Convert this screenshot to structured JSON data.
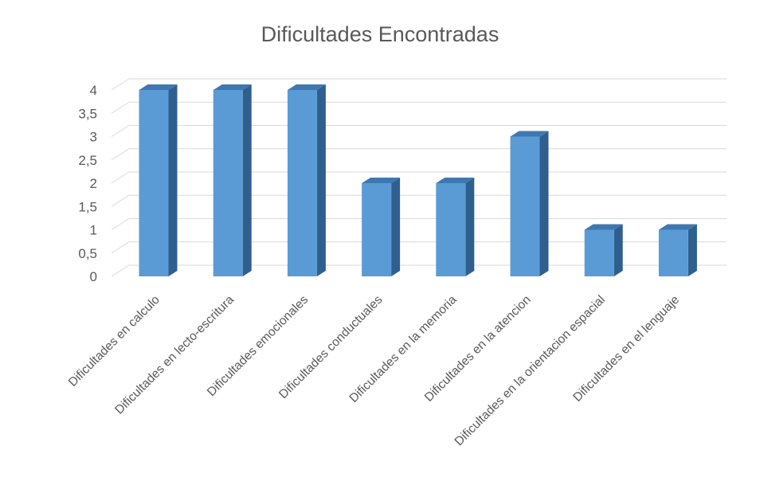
{
  "chart_data": {
    "type": "bar",
    "title": "Dificultades Encontradas",
    "xlabel": "",
    "ylabel": "",
    "categories": [
      "Dificultades en calculo",
      "Dificultades en lecto-escritura",
      "Dificultades emocionales",
      "Dificultades conductuales",
      "Dificultades en la memoria",
      "Dificultades en la atencion",
      "Dificultades en la orientacion espacial",
      "Dificultades en el lenguaje"
    ],
    "values": [
      4,
      4,
      4,
      2,
      2,
      3,
      1,
      1
    ],
    "ylim": [
      0,
      4
    ],
    "yticks": [
      "0",
      "0,5",
      "1",
      "1,5",
      "2",
      "2,5",
      "3",
      "3,5",
      "4"
    ],
    "grid": true,
    "legend": "none",
    "colors": {
      "bar_front": "#5b9bd5",
      "bar_side": "#2f5f8f",
      "bar_top": "#3f78b0",
      "grid": "#d9d9d9",
      "text": "#595959"
    }
  }
}
